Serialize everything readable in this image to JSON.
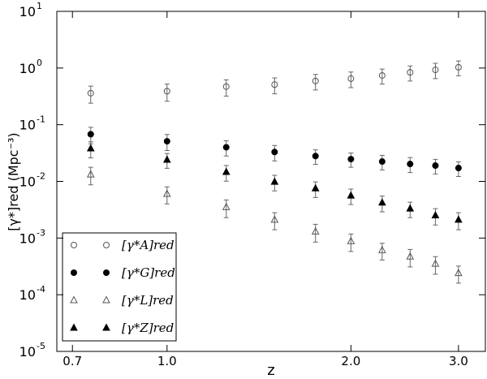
{
  "chart_data": {
    "type": "scatter",
    "xlabel": "z",
    "ylabel": "[γ*]red (Mpc⁻³)",
    "xscale": "log",
    "yscale": "log",
    "xlim": [
      0.66,
      3.32
    ],
    "ylim": [
      1e-05,
      10
    ],
    "xticks": [
      0.7,
      {
        "value": 1,
        "label": "1.0"
      },
      {
        "value": 2,
        "label": "2.0"
      },
      {
        "value": 3,
        "label": "3.0"
      }
    ],
    "yticks": [
      {
        "value": 1e-05,
        "label": "10",
        "exponent": "-5"
      },
      {
        "value": 0.0001,
        "label": "10",
        "exponent": "-4"
      },
      {
        "value": 0.001,
        "label": "10",
        "exponent": "-3"
      },
      {
        "value": 0.01,
        "label": "10",
        "exponent": "-2"
      },
      {
        "value": 0.1,
        "label": "10",
        "exponent": "-1"
      },
      {
        "value": 1,
        "label": "10",
        "exponent": "0"
      },
      {
        "value": 10,
        "label": "10",
        "exponent": "1"
      }
    ],
    "legend": "lower left",
    "x": [
      0.75,
      1,
      1.25,
      1.5,
      1.75,
      2,
      2.25,
      2.5,
      2.75,
      3
    ],
    "series": [
      {
        "name": "[γ*A]red",
        "color": "#555555",
        "marker": "circle",
        "filled": false,
        "values": [
          0.36,
          0.39,
          0.47,
          0.51,
          0.59,
          0.65,
          0.74,
          0.84,
          0.93,
          1.03
        ],
        "errors": [
          0.12,
          0.13,
          0.15,
          0.16,
          0.18,
          0.2,
          0.22,
          0.25,
          0.28,
          0.3
        ]
      },
      {
        "name": "[γ*G]red",
        "color": "#000000",
        "marker": "circle",
        "filled": true,
        "values": [
          0.068,
          0.051,
          0.04,
          0.033,
          0.028,
          0.0247,
          0.0224,
          0.0203,
          0.019,
          0.0172
        ],
        "errors": [
          0.022,
          0.016,
          0.012,
          0.01,
          0.008,
          0.007,
          0.0065,
          0.006,
          0.0055,
          0.005
        ]
      },
      {
        "name": "[γ*L]red",
        "color": "#555555",
        "marker": "triangle",
        "filled": false,
        "values": [
          0.0132,
          0.006,
          0.0035,
          0.0021,
          0.0013,
          0.00088,
          0.00061,
          0.00047,
          0.00035,
          0.00024
        ],
        "errors": [
          0.0045,
          0.002,
          0.0012,
          0.0007,
          0.00045,
          0.0003,
          0.0002,
          0.00016,
          0.00012,
          8e-05
        ]
      },
      {
        "name": "[γ*Z]red",
        "color": "#000000",
        "marker": "triangle",
        "filled": true,
        "values": [
          0.038,
          0.024,
          0.0146,
          0.0098,
          0.0075,
          0.0056,
          0.0042,
          0.0033,
          0.0025,
          0.0021
        ],
        "errors": [
          0.012,
          0.007,
          0.0045,
          0.003,
          0.0023,
          0.0017,
          0.0013,
          0.001,
          0.0008,
          0.0007
        ]
      }
    ]
  }
}
